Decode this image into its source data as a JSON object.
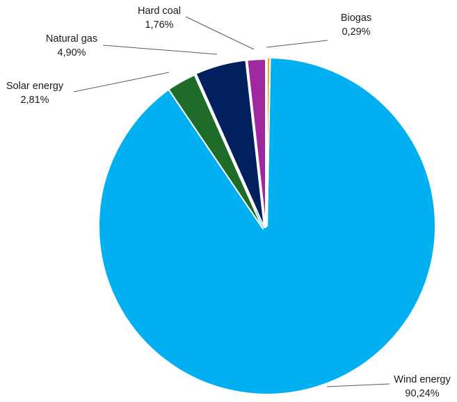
{
  "chart_data": {
    "type": "pie",
    "title": "",
    "legend": "none",
    "slices": [
      {
        "label": "Biogas",
        "value": 0.29,
        "display": "0,29%",
        "color": "#f5a800"
      },
      {
        "label": "Wind energy",
        "value": 90.24,
        "display": "90,24%",
        "color": "#00b0f0"
      },
      {
        "label": "Solar energy",
        "value": 2.81,
        "display": "2,81%",
        "color": "#1e6b2a"
      },
      {
        "label": "Natural gas",
        "value": 4.9,
        "display": "4,90%",
        "color": "#002060"
      },
      {
        "label": "Hard coal",
        "value": 1.76,
        "display": "1,76%",
        "color": "#a0289e"
      }
    ]
  }
}
